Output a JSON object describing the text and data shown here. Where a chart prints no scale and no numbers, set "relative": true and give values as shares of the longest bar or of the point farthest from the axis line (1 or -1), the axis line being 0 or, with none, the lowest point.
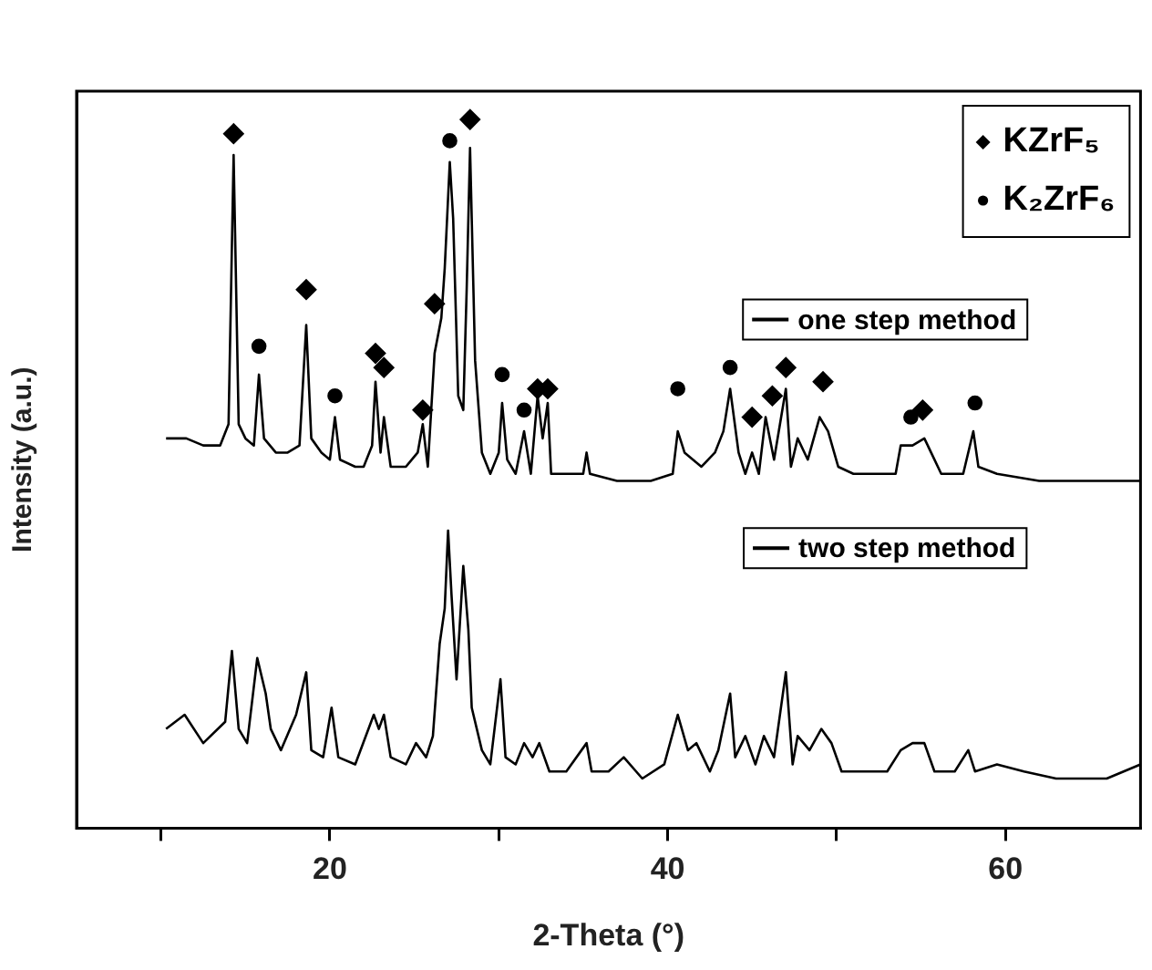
{
  "chart_data": {
    "type": "line",
    "xlabel": "2-Theta (°)",
    "ylabel": "Intensity (a.u.)",
    "relative": true,
    "legend": "top right",
    "xlim": [
      5,
      68
    ],
    "xticks": [
      {
        "value": 10,
        "label": null
      },
      20,
      {
        "value": 30,
        "label": null
      },
      40,
      {
        "value": 50,
        "label": null
      },
      60
    ],
    "series": [
      {
        "name": "one step method",
        "type": "line",
        "marker": "none",
        "color": "#000000",
        "x": [
          10.3,
          11.5,
          12.5,
          13.5,
          14.0,
          14.3,
          14.6,
          15.0,
          15.5,
          15.8,
          16.1,
          16.8,
          17.5,
          18.2,
          18.6,
          18.9,
          19.5,
          20.0,
          20.3,
          20.6,
          21.5,
          22.0,
          22.5,
          22.7,
          23.0,
          23.2,
          23.6,
          24.5,
          25.2,
          25.5,
          25.8,
          26.2,
          26.6,
          26.8,
          27.1,
          27.3,
          27.6,
          27.9,
          28.1,
          28.3,
          28.6,
          29.0,
          29.5,
          30.0,
          30.2,
          30.5,
          31.0,
          31.5,
          31.9,
          32.3,
          32.6,
          32.9,
          33.1,
          33.5,
          35.0,
          35.2,
          35.4,
          37.0,
          39.0,
          40.3,
          40.6,
          41.0,
          41.5,
          42.0,
          42.8,
          43.3,
          43.7,
          44.2,
          44.6,
          45.0,
          45.4,
          45.8,
          46.3,
          47.0,
          47.3,
          47.7,
          48.3,
          49.0,
          49.5,
          50.1,
          51.0,
          52.5,
          53.5,
          53.8,
          54.5,
          55.2,
          55.6,
          56.2,
          57.5,
          58.1,
          58.4,
          59.5,
          62.0,
          65.0,
          68.0
        ],
        "values": [
          0.55,
          0.55,
          0.54,
          0.54,
          0.57,
          0.95,
          0.57,
          0.55,
          0.54,
          0.64,
          0.55,
          0.53,
          0.53,
          0.54,
          0.71,
          0.55,
          0.53,
          0.52,
          0.58,
          0.52,
          0.51,
          0.51,
          0.54,
          0.63,
          0.53,
          0.58,
          0.51,
          0.51,
          0.53,
          0.57,
          0.51,
          0.67,
          0.72,
          0.79,
          0.94,
          0.86,
          0.61,
          0.59,
          0.76,
          0.96,
          0.66,
          0.53,
          0.5,
          0.53,
          0.6,
          0.52,
          0.5,
          0.56,
          0.5,
          0.61,
          0.55,
          0.6,
          0.5,
          0.5,
          0.5,
          0.53,
          0.5,
          0.49,
          0.49,
          0.5,
          0.56,
          0.53,
          0.52,
          0.51,
          0.53,
          0.56,
          0.62,
          0.53,
          0.5,
          0.53,
          0.5,
          0.58,
          0.52,
          0.62,
          0.51,
          0.55,
          0.52,
          0.58,
          0.56,
          0.51,
          0.5,
          0.5,
          0.5,
          0.54,
          0.54,
          0.55,
          0.53,
          0.5,
          0.5,
          0.56,
          0.51,
          0.5,
          0.49,
          0.49,
          0.49
        ]
      },
      {
        "name": "two step method",
        "type": "line",
        "marker": "none",
        "color": "#000000",
        "x": [
          10.3,
          11.4,
          12.5,
          13.8,
          14.2,
          14.6,
          15.1,
          15.7,
          16.2,
          16.5,
          17.1,
          18.0,
          18.6,
          18.9,
          19.6,
          20.1,
          20.5,
          21.5,
          22.6,
          22.9,
          23.2,
          23.6,
          24.5,
          25.1,
          25.7,
          26.1,
          26.5,
          26.8,
          27.0,
          27.2,
          27.5,
          27.9,
          28.2,
          28.4,
          29.0,
          29.5,
          30.1,
          30.4,
          31.0,
          31.5,
          32.0,
          32.4,
          33.0,
          34.0,
          35.2,
          35.5,
          36.5,
          37.4,
          38.5,
          39.8,
          40.6,
          41.2,
          41.7,
          42.5,
          43.0,
          43.7,
          44.0,
          44.6,
          45.2,
          45.7,
          46.3,
          47.0,
          47.4,
          47.7,
          48.4,
          49.1,
          49.7,
          50.3,
          51.5,
          53.0,
          53.8,
          54.5,
          55.2,
          55.8,
          57.0,
          57.8,
          58.2,
          59.5,
          61.1,
          63.0,
          66.0,
          68.0
        ],
        "values": [
          0.14,
          0.16,
          0.12,
          0.15,
          0.25,
          0.14,
          0.12,
          0.24,
          0.19,
          0.14,
          0.11,
          0.16,
          0.22,
          0.11,
          0.1,
          0.17,
          0.1,
          0.09,
          0.16,
          0.14,
          0.16,
          0.1,
          0.09,
          0.12,
          0.1,
          0.13,
          0.26,
          0.31,
          0.42,
          0.33,
          0.21,
          0.37,
          0.28,
          0.17,
          0.11,
          0.09,
          0.21,
          0.1,
          0.09,
          0.12,
          0.1,
          0.12,
          0.08,
          0.08,
          0.12,
          0.08,
          0.08,
          0.1,
          0.07,
          0.09,
          0.16,
          0.11,
          0.12,
          0.08,
          0.11,
          0.19,
          0.1,
          0.13,
          0.09,
          0.13,
          0.1,
          0.22,
          0.09,
          0.13,
          0.11,
          0.14,
          0.12,
          0.08,
          0.08,
          0.08,
          0.11,
          0.12,
          0.12,
          0.08,
          0.08,
          0.11,
          0.08,
          0.09,
          0.08,
          0.07,
          0.07,
          0.09
        ]
      },
      {
        "name": "KZrF₅",
        "type": "scatter",
        "marker": "diamond",
        "color": "#000000",
        "x": [
          14.3,
          18.6,
          22.7,
          23.2,
          25.5,
          26.2,
          28.3,
          32.3,
          32.9,
          45.0,
          46.2,
          47.0,
          49.2,
          55.1
        ],
        "values": [
          0.98,
          0.76,
          0.67,
          0.65,
          0.59,
          0.74,
          1.0,
          0.62,
          0.62,
          0.58,
          0.61,
          0.65,
          0.63,
          0.59
        ]
      },
      {
        "name": "K₂ZrF₆",
        "type": "scatter",
        "marker": "circle",
        "color": "#000000",
        "x": [
          15.8,
          20.3,
          27.1,
          30.2,
          31.5,
          40.6,
          43.7,
          54.4,
          58.2
        ],
        "values": [
          0.68,
          0.61,
          0.97,
          0.64,
          0.59,
          0.62,
          0.65,
          0.58,
          0.6
        ]
      }
    ]
  }
}
